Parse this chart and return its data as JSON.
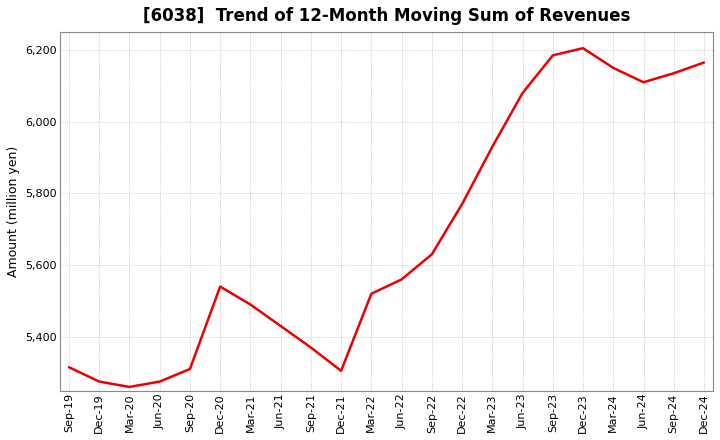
{
  "title": "[6038]  Trend of 12-Month Moving Sum of Revenues",
  "ylabel": "Amount (million yen)",
  "line_color": "#EE0000",
  "background_color": "#FFFFFF",
  "grid_color": "#BBBBBB",
  "ylim": [
    5250,
    6250
  ],
  "yticks": [
    5400,
    5600,
    5800,
    6000,
    6200
  ],
  "labels": [
    "Sep-19",
    "Dec-19",
    "Mar-20",
    "Jun-20",
    "Sep-20",
    "Dec-20",
    "Mar-21",
    "Jun-21",
    "Sep-21",
    "Dec-21",
    "Mar-22",
    "Jun-22",
    "Sep-22",
    "Dec-22",
    "Mar-23",
    "Jun-23",
    "Sep-23",
    "Dec-23",
    "Mar-24",
    "Jun-24",
    "Sep-24",
    "Dec-24"
  ],
  "values": [
    5315,
    5275,
    5260,
    5275,
    5310,
    5540,
    5490,
    5430,
    5370,
    5305,
    5520,
    5560,
    5630,
    5770,
    5930,
    6080,
    6185,
    6205,
    6150,
    6110,
    6135,
    6165
  ],
  "title_fontsize": 12,
  "ylabel_fontsize": 9,
  "tick_fontsize": 8
}
